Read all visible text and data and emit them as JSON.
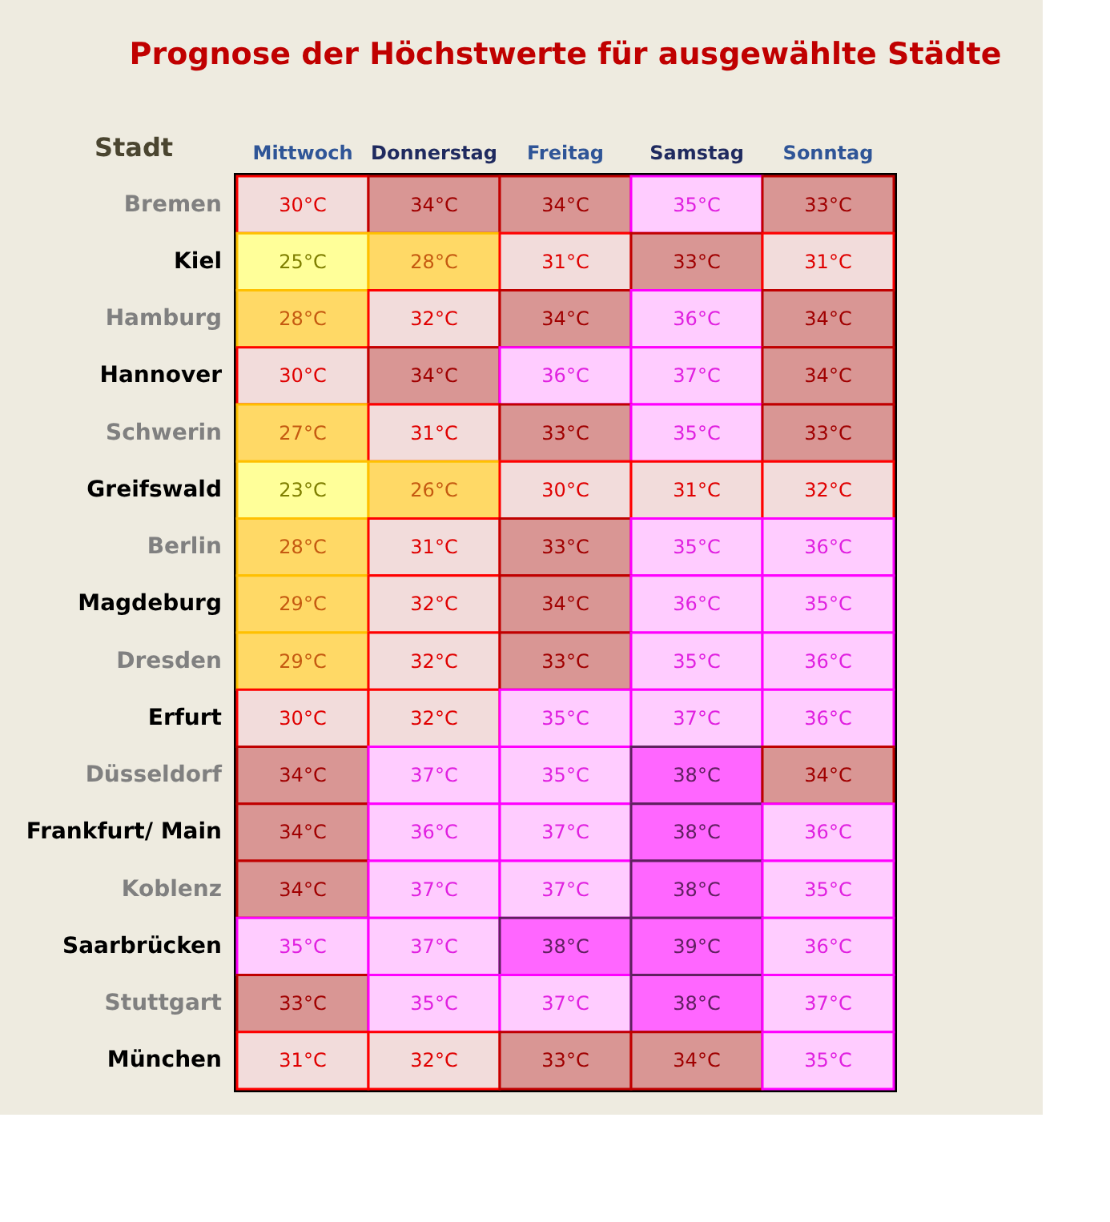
{
  "chart_data": {
    "type": "heatmap",
    "title": "Prognose der Höchstwerte für ausgewählte Städte",
    "ylabel": "Stadt",
    "categories": [
      "Mittwoch",
      "Donnerstag",
      "Freitag",
      "Samstag",
      "Sonntag"
    ],
    "y_categories": [
      "Bremen",
      "Kiel",
      "Hamburg",
      "Hannover",
      "Schwerin",
      "Greifswald",
      "Berlin",
      "Magdeburg",
      "Dresden",
      "Erfurt",
      "Düsseldorf",
      "Frankfurt/ Main",
      "Koblenz",
      "Saarbrücken",
      "Stuttgart",
      "München"
    ],
    "cells": [
      [
        30,
        34,
        34,
        35,
        33
      ],
      [
        25,
        28,
        31,
        33,
        31
      ],
      [
        28,
        32,
        34,
        36,
        34
      ],
      [
        30,
        34,
        36,
        37,
        34
      ],
      [
        27,
        31,
        33,
        35,
        33
      ],
      [
        23,
        26,
        30,
        31,
        32
      ],
      [
        28,
        31,
        33,
        35,
        36
      ],
      [
        29,
        32,
        34,
        36,
        35
      ],
      [
        29,
        32,
        33,
        35,
        36
      ],
      [
        30,
        32,
        35,
        37,
        36
      ],
      [
        34,
        37,
        35,
        38,
        34
      ],
      [
        34,
        36,
        37,
        38,
        36
      ],
      [
        34,
        37,
        37,
        38,
        35
      ],
      [
        35,
        37,
        38,
        39,
        36
      ],
      [
        33,
        35,
        37,
        38,
        37
      ],
      [
        31,
        32,
        33,
        34,
        35
      ]
    ],
    "cell_labels": [
      [
        "30°C",
        "34°C",
        "34°C",
        "35°C",
        "33°C"
      ],
      [
        "25°C",
        "28°C",
        "31°C",
        "33°C",
        "31°C"
      ],
      [
        "28°C",
        "32°C",
        "34°C",
        "36°C",
        "34°C"
      ],
      [
        "30°C",
        "34°C",
        "36°C",
        "37°C",
        "34°C"
      ],
      [
        "27°C",
        "31°C",
        "33°C",
        "35°C",
        "33°C"
      ],
      [
        "23°C",
        "26°C",
        "30°C",
        "31°C",
        "32°C"
      ],
      [
        "28°C",
        "31°C",
        "33°C",
        "35°C",
        "36°C"
      ],
      [
        "29°C",
        "32°C",
        "34°C",
        "36°C",
        "35°C"
      ],
      [
        "29°C",
        "32°C",
        "33°C",
        "35°C",
        "36°C"
      ],
      [
        "30°C",
        "32°C",
        "35°C",
        "37°C",
        "36°C"
      ],
      [
        "34°C",
        "37°C",
        "35°C",
        "38°C",
        "34°C"
      ],
      [
        "34°C",
        "36°C",
        "37°C",
        "38°C",
        "36°C"
      ],
      [
        "34°C",
        "37°C",
        "37°C",
        "38°C",
        "35°C"
      ],
      [
        "35°C",
        "37°C",
        "38°C",
        "39°C",
        "36°C"
      ],
      [
        "33°C",
        "35°C",
        "37°C",
        "38°C",
        "37°C"
      ],
      [
        "31°C",
        "32°C",
        "33°C",
        "34°C",
        "35°C"
      ]
    ],
    "colors": [
      [
        "#f2dcdb",
        "#d99694",
        "#d99694",
        "#ffccff",
        "#d99694"
      ],
      [
        "#ffff99",
        "#ffd966",
        "#f2dcdb",
        "#d99694",
        "#f2dcdb"
      ],
      [
        "#ffd966",
        "#f2dcdb",
        "#d99694",
        "#ffccff",
        "#d99694"
      ],
      [
        "#f2dcdb",
        "#d99694",
        "#ffccff",
        "#ffccff",
        "#d99694"
      ],
      [
        "#ffd966",
        "#f2dcdb",
        "#d99694",
        "#ffccff",
        "#d99694"
      ],
      [
        "#ffff99",
        "#ffd966",
        "#f2dcdb",
        "#f2dcdb",
        "#f2dcdb"
      ],
      [
        "#ffd966",
        "#f2dcdb",
        "#d99694",
        "#ffccff",
        "#ffccff"
      ],
      [
        "#ffd966",
        "#f2dcdb",
        "#d99694",
        "#ffccff",
        "#ffccff"
      ],
      [
        "#ffd966",
        "#f2dcdb",
        "#d99694",
        "#ffccff",
        "#ffccff"
      ],
      [
        "#f2dcdb",
        "#f2dcdb",
        "#ffccff",
        "#ffccff",
        "#ffccff"
      ],
      [
        "#d99694",
        "#ffccff",
        "#ffccff",
        "#ff66ff",
        "#d99694"
      ],
      [
        "#d99694",
        "#ffccff",
        "#ffccff",
        "#ff66ff",
        "#ffccff"
      ],
      [
        "#d99694",
        "#ffccff",
        "#ffccff",
        "#ff66ff",
        "#ffccff"
      ],
      [
        "#ffccff",
        "#ffccff",
        "#ff66ff",
        "#ff66ff",
        "#ffccff"
      ],
      [
        "#d99694",
        "#ffccff",
        "#ffccff",
        "#ff66ff",
        "#ffccff"
      ],
      [
        "#f2dcdb",
        "#f2dcdb",
        "#d99694",
        "#d99694",
        "#ffccff"
      ]
    ]
  }
}
